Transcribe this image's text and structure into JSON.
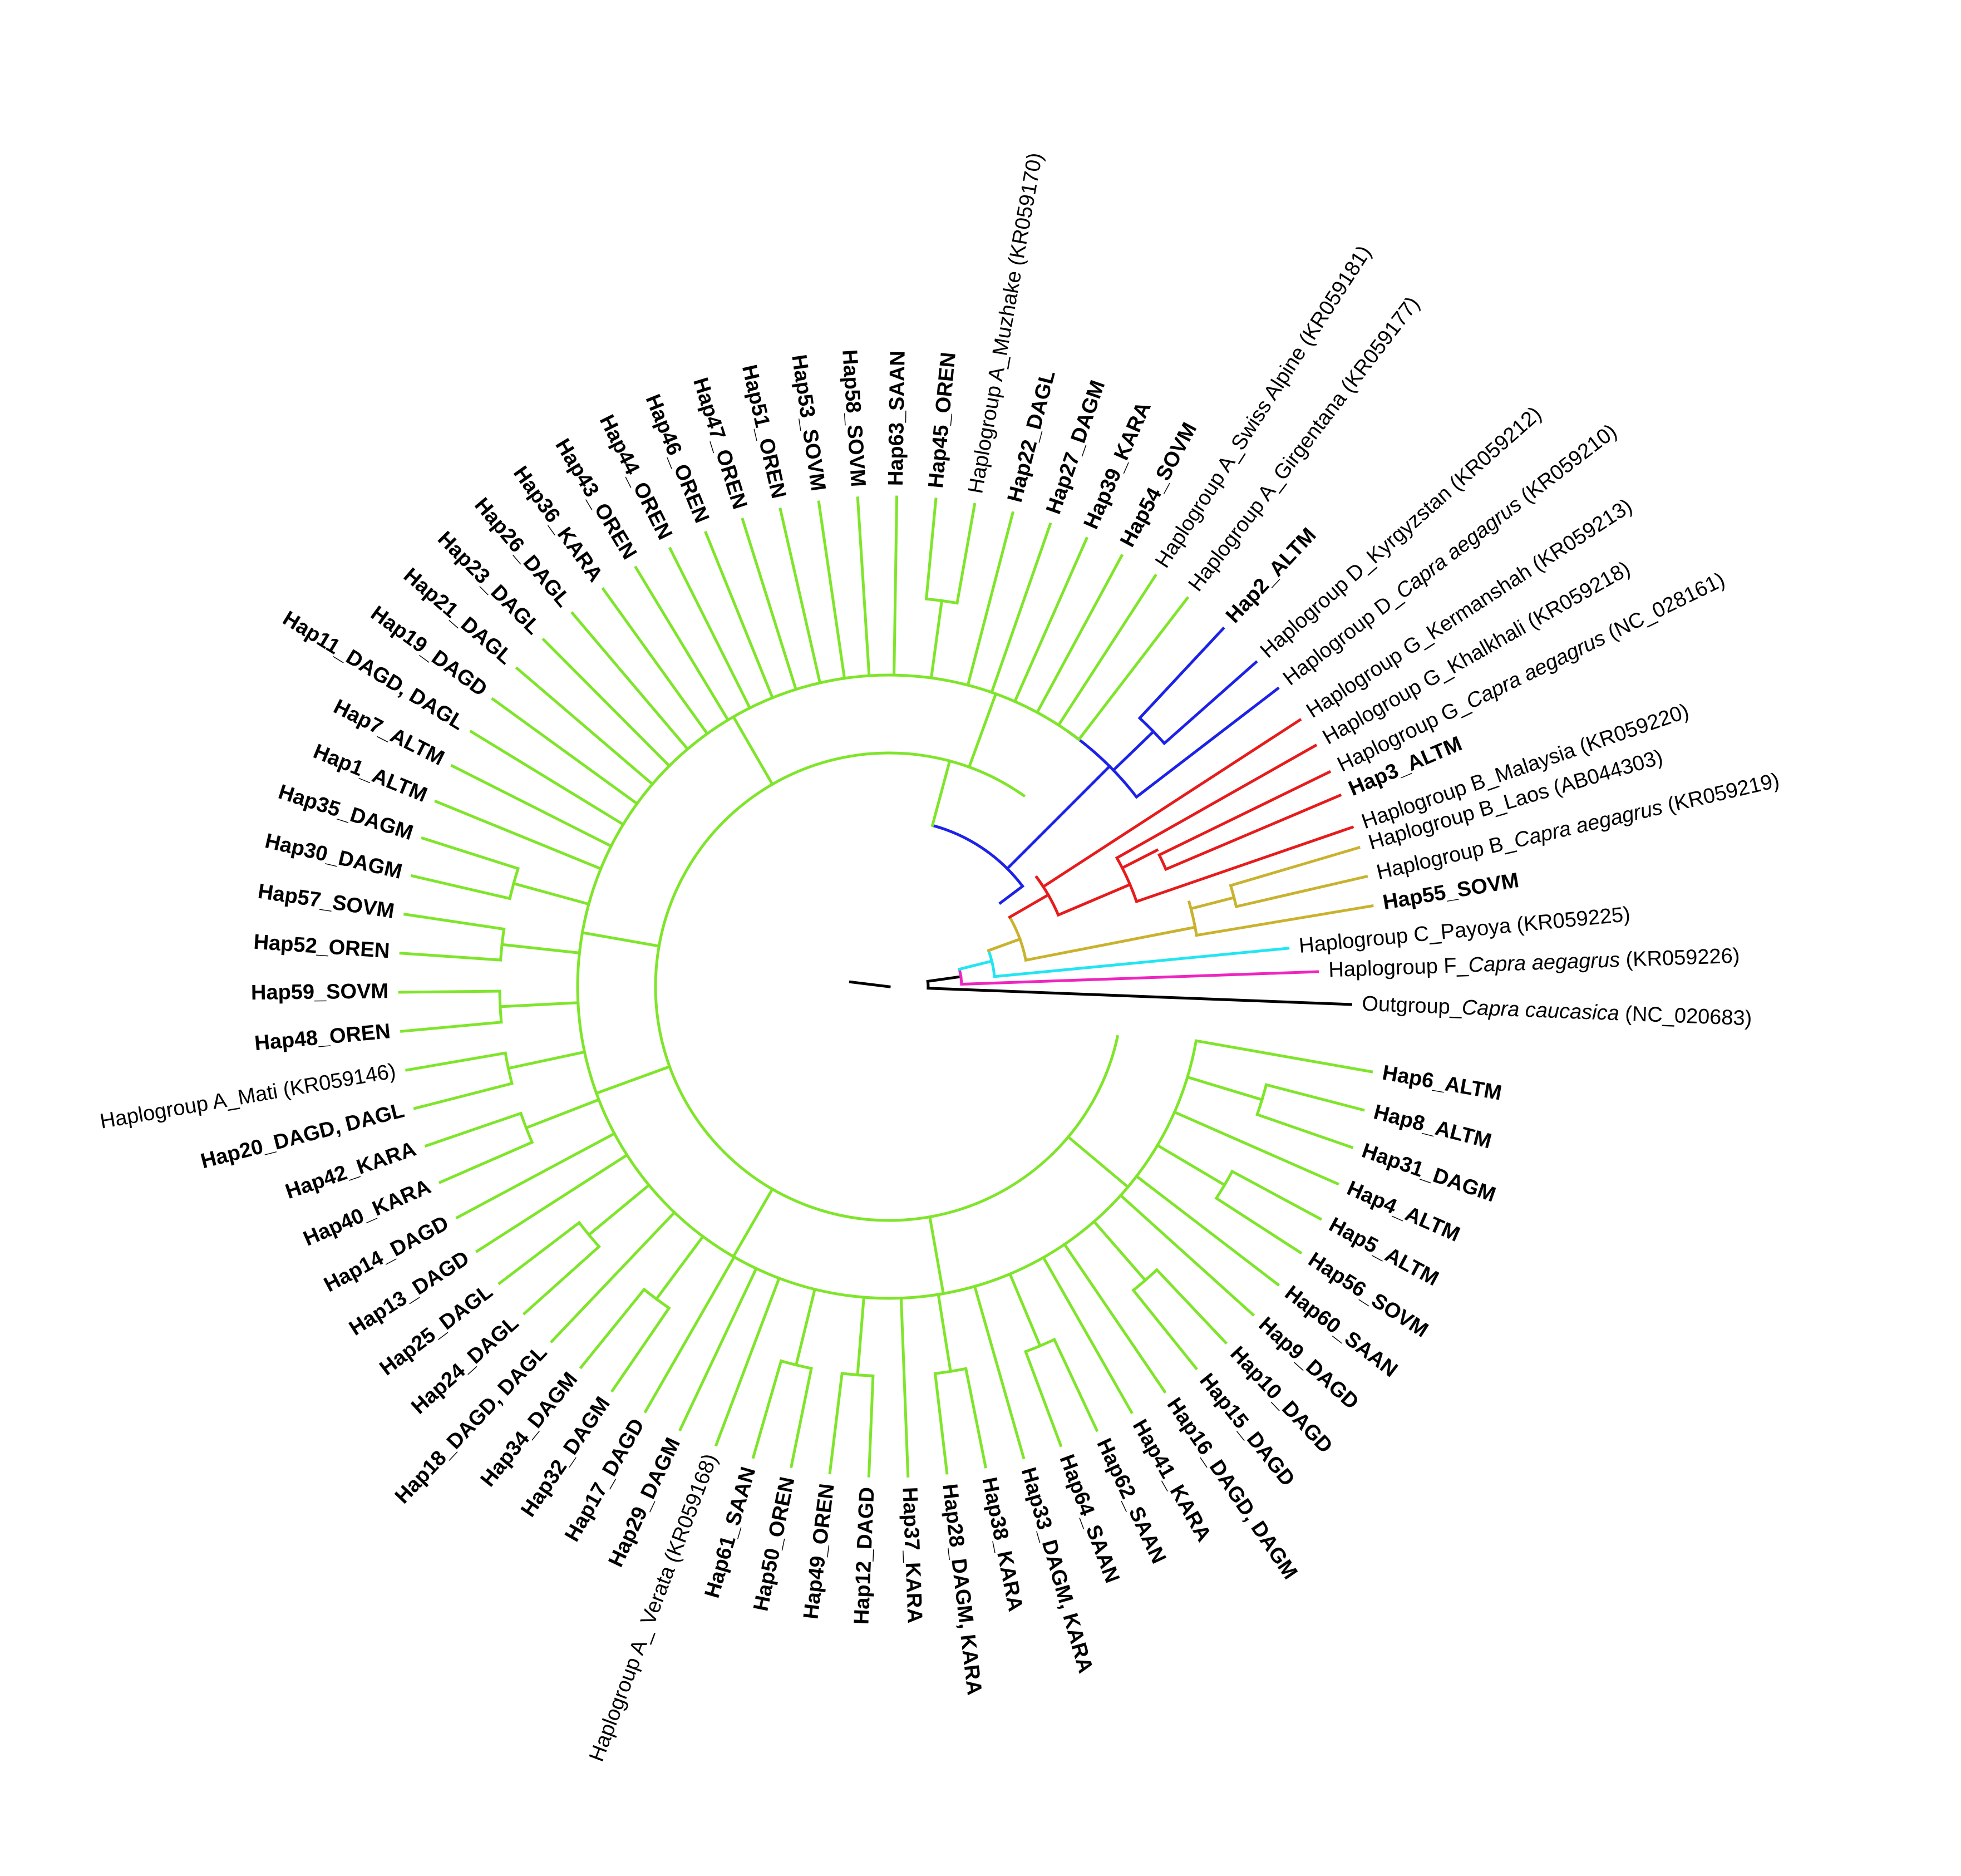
{
  "colors": {
    "A": "#7fe52b",
    "D": "#1c22e6",
    "G": "#e61c1c",
    "B": "#c9b22e",
    "C": "#22e5f2",
    "F": "#ee25c0",
    "OUT": "#000000"
  },
  "tree": {
    "outgroup": {
      "parts": [
        {
          "t": "Outgroup_"
        },
        {
          "t": "Capra caucasica",
          "i": true
        },
        {
          "t": " (NC_020683)"
        }
      ],
      "bold": false
    },
    "haplogroup_f": {
      "parts": [
        {
          "t": "Haplogroup F_"
        },
        {
          "t": "Capra aegagrus",
          "i": true
        },
        {
          "t": " (KR059226)"
        }
      ],
      "bold": false
    },
    "haplogroup_c": {
      "parts": [
        {
          "t": "Haplogroup C_Payoya (KR059225)"
        }
      ],
      "bold": false
    },
    "haplogroup_b": [
      {
        "parts": [
          {
            "t": "Hap55_SOVM"
          }
        ],
        "bold": true
      },
      {
        "parts": [
          {
            "t": "Haplogroup B_"
          },
          {
            "t": "Capra aegagrus",
            "i": true
          },
          {
            "t": " (KR059219)"
          }
        ],
        "bold": false
      },
      {
        "parts": [
          {
            "t": "Haplogroup B_Laos (AB044303)"
          }
        ],
        "bold": false
      },
      {
        "parts": [
          {
            "t": "Haplogroup B_Malaysia (KR059220)"
          }
        ],
        "bold": false
      }
    ],
    "haplogroup_g": [
      {
        "parts": [
          {
            "t": "Hap3_ALTM"
          }
        ],
        "bold": true
      },
      {
        "parts": [
          {
            "t": "Haplogroup G_"
          },
          {
            "t": "Capra aegagrus",
            "i": true
          },
          {
            "t": " (NC_028161)"
          }
        ],
        "bold": false
      },
      {
        "parts": [
          {
            "t": "Haplogroup G_Khalkhali (KR059218)"
          }
        ],
        "bold": false
      },
      {
        "parts": [
          {
            "t": "Haplogroup G_Kermanshah (KR059213)"
          }
        ],
        "bold": false
      }
    ],
    "haplogroup_d": [
      {
        "parts": [
          {
            "t": "Haplogroup D_"
          },
          {
            "t": "Capra aegagrus",
            "i": true
          },
          {
            "t": " (KR059210)"
          }
        ],
        "bold": false
      },
      {
        "parts": [
          {
            "t": "Haplogroup D_Kyrgyzstan (KR059212)"
          }
        ],
        "bold": false
      },
      {
        "parts": [
          {
            "t": "Hap2_ALTM"
          }
        ],
        "bold": true
      }
    ],
    "haplogroup_a_top": [
      {
        "parts": [
          {
            "t": "Haplogroup A_Girgentana (KR059177)"
          }
        ],
        "bold": false
      },
      {
        "parts": [
          {
            "t": "Haplogroup A_Swiss Alpine (KR059181)"
          }
        ],
        "bold": false
      },
      {
        "parts": [
          {
            "t": "Hap54_SOVM"
          }
        ],
        "bold": true
      },
      {
        "parts": [
          {
            "t": "Hap39_KARA"
          }
        ],
        "bold": true
      },
      {
        "parts": [
          {
            "t": "Hap27_DAGM"
          }
        ],
        "bold": true
      },
      {
        "parts": [
          {
            "t": "Hap22_DAGL"
          }
        ],
        "bold": true
      },
      {
        "parts": [
          {
            "t": "Haplogroup A_Muzhake (KR059170)"
          }
        ],
        "bold": false
      },
      {
        "parts": [
          {
            "t": "Hap45_OREN"
          }
        ],
        "bold": true
      },
      {
        "parts": [
          {
            "t": "Hap63_SAAN"
          }
        ],
        "bold": true
      },
      {
        "parts": [
          {
            "t": "Hap58_SOVM"
          }
        ],
        "bold": true
      },
      {
        "parts": [
          {
            "t": "Hap53_SOVM"
          }
        ],
        "bold": true
      },
      {
        "parts": [
          {
            "t": "Hap51_OREN"
          }
        ],
        "bold": true
      },
      {
        "parts": [
          {
            "t": "Hap47_OREN"
          }
        ],
        "bold": true
      },
      {
        "parts": [
          {
            "t": "Hap46_OREN"
          }
        ],
        "bold": true
      },
      {
        "parts": [
          {
            "t": "Hap44_OREN"
          }
        ],
        "bold": true
      },
      {
        "parts": [
          {
            "t": "Hap43_OREN"
          }
        ],
        "bold": true
      },
      {
        "parts": [
          {
            "t": "Hap36_KARA"
          }
        ],
        "bold": true
      },
      {
        "parts": [
          {
            "t": "Hap26_DAGL"
          }
        ],
        "bold": true
      },
      {
        "parts": [
          {
            "t": "Hap23_DAGL"
          }
        ],
        "bold": true
      },
      {
        "parts": [
          {
            "t": "Hap21_DAGL"
          }
        ],
        "bold": true
      },
      {
        "parts": [
          {
            "t": "Hap19_DAGD"
          }
        ],
        "bold": true
      },
      {
        "parts": [
          {
            "t": "Hap11_DAGD, DAGL"
          }
        ],
        "bold": true
      },
      {
        "parts": [
          {
            "t": "Hap7_ALTM"
          }
        ],
        "bold": true
      },
      {
        "parts": [
          {
            "t": "Hap1_ALTM"
          }
        ],
        "bold": true
      },
      {
        "parts": [
          {
            "t": "Hap35_DAGM"
          }
        ],
        "bold": true
      },
      {
        "parts": [
          {
            "t": "Hap30_DAGM"
          }
        ],
        "bold": true
      },
      {
        "parts": [
          {
            "t": "Hap57_SOVM"
          }
        ],
        "bold": true
      },
      {
        "parts": [
          {
            "t": "Hap52_OREN"
          }
        ],
        "bold": true
      },
      {
        "parts": [
          {
            "t": "Hap59_SOVM"
          }
        ],
        "bold": true
      },
      {
        "parts": [
          {
            "t": "Hap48_OREN"
          }
        ],
        "bold": true
      },
      {
        "parts": [
          {
            "t": "Haplogroup A_Mati (KR059146)"
          }
        ],
        "bold": false
      },
      {
        "parts": [
          {
            "t": "Hap20_DAGD, DAGL"
          }
        ],
        "bold": true
      },
      {
        "parts": [
          {
            "t": "Hap42_KARA"
          }
        ],
        "bold": true
      },
      {
        "parts": [
          {
            "t": "Hap40_KARA"
          }
        ],
        "bold": true
      },
      {
        "parts": [
          {
            "t": "Hap14_DAGD"
          }
        ],
        "bold": true
      },
      {
        "parts": [
          {
            "t": "Hap13_DAGD"
          }
        ],
        "bold": true
      },
      {
        "parts": [
          {
            "t": "Hap25_DAGL"
          }
        ],
        "bold": true
      },
      {
        "parts": [
          {
            "t": "Hap24_DAGL"
          }
        ],
        "bold": true
      },
      {
        "parts": [
          {
            "t": "Hap18_DAGD, DAGL"
          }
        ],
        "bold": true
      },
      {
        "parts": [
          {
            "t": "Hap34_DAGM"
          }
        ],
        "bold": true
      },
      {
        "parts": [
          {
            "t": "Hap32_DAGM"
          }
        ],
        "bold": true
      },
      {
        "parts": [
          {
            "t": "Hap17_DAGD"
          }
        ],
        "bold": true
      },
      {
        "parts": [
          {
            "t": "Hap29_DAGM"
          }
        ],
        "bold": true
      },
      {
        "parts": [
          {
            "t": "Haplogroup A_ Verata (KR059168)"
          }
        ],
        "bold": false
      },
      {
        "parts": [
          {
            "t": "Hap61_SAAN"
          }
        ],
        "bold": true
      },
      {
        "parts": [
          {
            "t": "Hap50_OREN"
          }
        ],
        "bold": true
      },
      {
        "parts": [
          {
            "t": "Hap49_OREN"
          }
        ],
        "bold": true
      },
      {
        "parts": [
          {
            "t": "Hap12_DAGD"
          }
        ],
        "bold": true
      },
      {
        "parts": [
          {
            "t": "Hap37_KARA"
          }
        ],
        "bold": true
      },
      {
        "parts": [
          {
            "t": "Hap28_DAGM, KARA"
          }
        ],
        "bold": true
      },
      {
        "parts": [
          {
            "t": "Hap38_KARA"
          }
        ],
        "bold": true
      },
      {
        "parts": [
          {
            "t": "Hap33_DAGM, KARA"
          }
        ],
        "bold": true
      },
      {
        "parts": [
          {
            "t": "Hap64_SAAN"
          }
        ],
        "bold": true
      },
      {
        "parts": [
          {
            "t": "Hap62_SAAN"
          }
        ],
        "bold": true
      },
      {
        "parts": [
          {
            "t": "Hap41_KARA"
          }
        ],
        "bold": true
      },
      {
        "parts": [
          {
            "t": "Hap16_DAGD, DAGM"
          }
        ],
        "bold": true
      },
      {
        "parts": [
          {
            "t": "Hap15_DAGD"
          }
        ],
        "bold": true
      },
      {
        "parts": [
          {
            "t": "Hap10_DAGD"
          }
        ],
        "bold": true
      },
      {
        "parts": [
          {
            "t": "Hap9_DAGD"
          }
        ],
        "bold": true
      },
      {
        "parts": [
          {
            "t": "Hap60_SAAN"
          }
        ],
        "bold": true
      },
      {
        "parts": [
          {
            "t": "Hap56_SOVM"
          }
        ],
        "bold": true
      },
      {
        "parts": [
          {
            "t": "Hap5_ALTM"
          }
        ],
        "bold": true
      },
      {
        "parts": [
          {
            "t": "Hap4_ALTM"
          }
        ],
        "bold": true
      },
      {
        "parts": [
          {
            "t": "Hap31_DAGM"
          }
        ],
        "bold": true
      },
      {
        "parts": [
          {
            "t": "Hap8_ALTM"
          }
        ],
        "bold": true
      },
      {
        "parts": [
          {
            "t": "Hap6_ALTM"
          }
        ],
        "bold": true
      }
    ]
  }
}
